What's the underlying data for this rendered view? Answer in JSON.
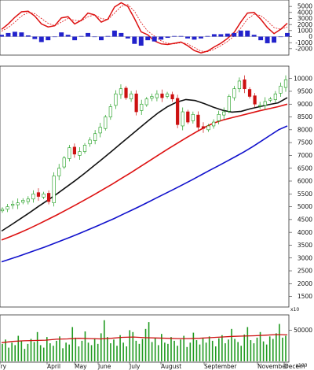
{
  "chart_data": [
    {
      "panel": "indicator",
      "type": "line",
      "y_ticks": [
        5000,
        4000,
        3000,
        2000,
        1000,
        0,
        -1000,
        -2000
      ],
      "ylim": [
        -2800,
        5800
      ],
      "series": [
        {
          "color": "#dd1111",
          "style": "solid",
          "values": [
            1200,
            2100,
            3200,
            4100,
            4200,
            3400,
            2100,
            1600,
            1800,
            3100,
            3300,
            2100,
            2700,
            3900,
            3600,
            2400,
            2900,
            4900,
            5600,
            5000,
            3000,
            800,
            300,
            -700,
            -1200,
            -1300,
            -1100,
            -900,
            -1500,
            -2300,
            -2700,
            -2400,
            -1700,
            -1100,
            -300,
            700,
            2400,
            3900,
            4000,
            2900,
            1500,
            500,
            1200,
            2200
          ]
        },
        {
          "color": "#dd1111",
          "style": "dashed",
          "values": [
            900,
            1500,
            2400,
            3400,
            4000,
            3800,
            3000,
            2200,
            1800,
            2400,
            3000,
            2700,
            2600,
            3300,
            3600,
            3000,
            2800,
            3900,
            5000,
            5300,
            4200,
            2300,
            900,
            100,
            -700,
            -1100,
            -1200,
            -1000,
            -1200,
            -1800,
            -2400,
            -2500,
            -2100,
            -1500,
            -800,
            100,
            1400,
            2900,
            3700,
            3500,
            2600,
            1500,
            1200,
            1600
          ]
        },
        {
          "color": "#2222cc",
          "style": "histogram",
          "values": [
            300,
            600,
            800,
            700,
            200,
            -400,
            -900,
            -600,
            0,
            700,
            300,
            -600,
            100,
            600,
            0,
            -600,
            100,
            1000,
            600,
            -300,
            -1200,
            -1500,
            -600,
            -800,
            -500,
            -200,
            100,
            100,
            -300,
            -500,
            -300,
            100,
            400,
            400,
            500,
            600,
            1000,
            1000,
            300,
            -600,
            -1100,
            -1000,
            0,
            600
          ]
        }
      ]
    },
    {
      "panel": "price",
      "type": "candlestick",
      "y_ticks": [
        10000,
        9500,
        9000,
        8500,
        8000,
        7500,
        7000,
        6500,
        6000,
        5500,
        5000,
        4500,
        4000,
        3500,
        3000,
        2500,
        2000,
        1500
      ],
      "ylim": [
        1150,
        10420
      ],
      "x_labels": [
        "ary",
        "April",
        "May",
        "June",
        "July",
        "August",
        "September",
        "November",
        "Decem"
      ],
      "close": [
        4900,
        5000,
        5100,
        5150,
        5250,
        5300,
        5500,
        5400,
        5500,
        5200,
        6200,
        6500,
        6900,
        7300,
        7050,
        7150,
        7400,
        7600,
        7850,
        8100,
        8500,
        8900,
        9400,
        9600,
        9250,
        9400,
        8700,
        9000,
        9200,
        9300,
        9400,
        9250,
        9400,
        9200,
        8200,
        8700,
        8300,
        8600,
        8100,
        8050,
        8150,
        8300,
        8600,
        8700,
        9300,
        9600,
        9900,
        9600,
        9300,
        9000,
        8950,
        9100,
        9200,
        9400,
        9700,
        9950
      ],
      "moving_averages": [
        {
          "color": "#111111",
          "values": [
            4050,
            4280,
            4520,
            4760,
            5010,
            5250,
            5500,
            5760,
            6020,
            6300,
            6590,
            6880,
            7180,
            7480,
            7780,
            8080,
            8380,
            8660,
            8900,
            9080,
            9180,
            9140,
            9020,
            8880,
            8760,
            8690,
            8720,
            8820,
            8900,
            8980,
            9050,
            9250
          ]
        },
        {
          "color": "#dd1111",
          "values": [
            3700,
            3840,
            3990,
            4150,
            4320,
            4500,
            4680,
            4870,
            5060,
            5260,
            5460,
            5670,
            5880,
            6100,
            6320,
            6550,
            6780,
            7010,
            7240,
            7460,
            7680,
            7890,
            8090,
            8260,
            8380,
            8470,
            8560,
            8650,
            8740,
            8820,
            8900,
            9000
          ]
        },
        {
          "color": "#1111cc",
          "values": [
            2850,
            2960,
            3070,
            3190,
            3310,
            3430,
            3560,
            3690,
            3820,
            3960,
            4100,
            4240,
            4390,
            4540,
            4700,
            4860,
            5020,
            5190,
            5360,
            5530,
            5700,
            5870,
            6050,
            6230,
            6410,
            6590,
            6770,
            6950,
            7140,
            7340,
            7560,
            7780,
            8000,
            8150
          ]
        }
      ]
    },
    {
      "panel": "volume",
      "type": "bar",
      "y_ticks": [
        50000
      ],
      "y_multiplier_label": "x100",
      "volume_values": [
        28000,
        35000,
        22000,
        30000,
        26000,
        41000,
        33000,
        20000,
        28000,
        36000,
        31000,
        47000,
        26000,
        22000,
        39000,
        29000,
        25000,
        33000,
        40000,
        21000,
        30000,
        27000,
        55000,
        38000,
        24000,
        33000,
        48000,
        30000,
        26000,
        37000,
        28000,
        45000,
        66000,
        39000,
        29000,
        35000,
        25000,
        42000,
        30000,
        24000,
        50000,
        47000,
        33000,
        28000,
        36000,
        52000,
        63000,
        31000,
        37000,
        26000,
        44000,
        30000,
        28000,
        39000,
        33000,
        25000,
        35000,
        41000,
        23000,
        30000,
        46000,
        34000,
        27000,
        38000,
        30000,
        40000,
        33000,
        24000,
        37000,
        42000,
        29000,
        35000,
        52000,
        36000,
        31000,
        25000,
        43000,
        55000,
        34000,
        29000,
        38000,
        47000,
        32000,
        27000,
        40000,
        36000,
        45000,
        60000,
        38000,
        41000
      ],
      "volume_ma": [
        30000,
        32000,
        33000,
        33500,
        34000,
        35500,
        36000,
        37000,
        36500,
        36000,
        37000,
        38500,
        39000,
        38000,
        37500,
        37000,
        36500,
        36500,
        37000,
        38000,
        39000,
        40000,
        40500,
        41000,
        42000,
        43000,
        42500
      ]
    }
  ]
}
